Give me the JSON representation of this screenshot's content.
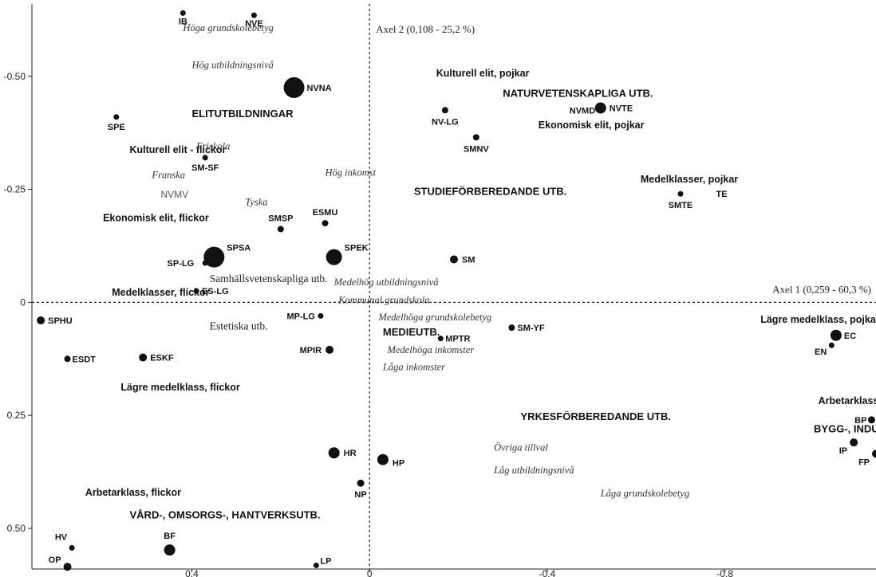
{
  "chart_data": {
    "type": "scatter",
    "title": "",
    "xlabel": "Axel 1 (0,259 - 60,3 %)",
    "ylabel": "Axel 2 (0,108 - 25,2 %)",
    "xlim": [
      0.76,
      -1.14
    ],
    "ylim": [
      -0.66,
      0.59
    ],
    "x_ticks": [
      {
        "v": 0.4,
        "label": "0.4"
      },
      {
        "v": 0,
        "label": "0"
      },
      {
        "v": -0.4,
        "label": "-0.4"
      },
      {
        "v": -0.8,
        "label": "-0.8"
      }
    ],
    "y_ticks": [
      {
        "v": -0.5,
        "label": "-0.50"
      },
      {
        "v": -0.25,
        "label": "-0.25"
      },
      {
        "v": 0,
        "label": "0"
      },
      {
        "v": 0.25,
        "label": "0.25"
      },
      {
        "v": 0.5,
        "label": "0.50"
      }
    ],
    "grid": false,
    "points": [
      {
        "label": "IB",
        "x": 0.42,
        "y": -0.64,
        "size": 3.5
      },
      {
        "label": "NVE",
        "x": 0.26,
        "y": -0.635,
        "size": 3.5
      },
      {
        "label": "NVNA",
        "x": 0.17,
        "y": -0.475,
        "size": 13
      },
      {
        "label": "SPE",
        "x": 0.57,
        "y": -0.41,
        "size": 3.5
      },
      {
        "label": "NV-LG",
        "x": -0.17,
        "y": -0.425,
        "size": 4
      },
      {
        "label": "NVTE",
        "x": -0.52,
        "y": -0.43,
        "size": 7
      },
      {
        "label": "SMNV",
        "x": -0.24,
        "y": -0.365,
        "size": 4
      },
      {
        "label": "SM-SF",
        "x": 0.37,
        "y": -0.32,
        "size": 3.5
      },
      {
        "label": "SMTE",
        "x": -0.7,
        "y": -0.24,
        "size": 3.5
      },
      {
        "label": "SMSP",
        "x": 0.2,
        "y": -0.162,
        "size": 4
      },
      {
        "label": "ESMU",
        "x": 0.1,
        "y": -0.175,
        "size": 4
      },
      {
        "label": "SPSA",
        "x": 0.35,
        "y": -0.1,
        "size": 13
      },
      {
        "label": "SP-LG",
        "x": 0.37,
        "y": -0.087,
        "size": 3.5
      },
      {
        "label": "SPEK",
        "x": 0.08,
        "y": -0.1,
        "size": 10
      },
      {
        "label": "SM",
        "x": -0.19,
        "y": -0.095,
        "size": 5
      },
      {
        "label": "ES-LG",
        "x": 0.39,
        "y": -0.025,
        "size": 3.5
      },
      {
        "label": "SPHU",
        "x": 0.74,
        "y": 0.04,
        "size": 5
      },
      {
        "label": "MP-LG",
        "x": 0.11,
        "y": 0.03,
        "size": 3.5
      },
      {
        "label": "SM-YF",
        "x": -0.32,
        "y": 0.056,
        "size": 4
      },
      {
        "label": "MPTR",
        "x": -0.16,
        "y": 0.08,
        "size": 3.5
      },
      {
        "label": "EC",
        "x": -1.05,
        "y": 0.073,
        "size": 7
      },
      {
        "label": "EN",
        "x": -1.04,
        "y": 0.095,
        "size": 3.5
      },
      {
        "label": "MPIR",
        "x": 0.09,
        "y": 0.105,
        "size": 5
      },
      {
        "label": "ESDT",
        "x": 0.68,
        "y": 0.125,
        "size": 4
      },
      {
        "label": "ESKF",
        "x": 0.51,
        "y": 0.122,
        "size": 5
      },
      {
        "label": "BP",
        "x": -1.13,
        "y": 0.26,
        "size": 4.5
      },
      {
        "label": "IP",
        "x": -1.09,
        "y": 0.31,
        "size": 5
      },
      {
        "label": "FP",
        "x": -1.14,
        "y": 0.335,
        "size": 5
      },
      {
        "label": "HR",
        "x": 0.08,
        "y": 0.333,
        "size": 7
      },
      {
        "label": "HP",
        "x": -0.03,
        "y": 0.348,
        "size": 7
      },
      {
        "label": "NP",
        "x": 0.02,
        "y": 0.4,
        "size": 4.5
      },
      {
        "label": "HV",
        "x": 0.67,
        "y": 0.543,
        "size": 3.5
      },
      {
        "label": "BF",
        "x": 0.45,
        "y": 0.548,
        "size": 7
      },
      {
        "label": "OP",
        "x": 0.68,
        "y": 0.585,
        "size": 5
      },
      {
        "label": "LP",
        "x": 0.12,
        "y": 0.582,
        "size": 3.5
      }
    ],
    "annotations": [
      {
        "text": "Höga grundskolebetyg",
        "x": 0.42,
        "y": -0.6,
        "style": "italic"
      },
      {
        "text": "Hög utbildningsnivå",
        "x": 0.4,
        "y": -0.518,
        "style": "italic"
      },
      {
        "text": "Kulturell elit, pojkar",
        "x": -0.15,
        "y": -0.5,
        "style": "group"
      },
      {
        "text": "NATURVETENSKAPLIGA UTB.",
        "x": -0.3,
        "y": -0.455,
        "style": "upper"
      },
      {
        "text": "NVMD",
        "x": -0.45,
        "y": -0.418,
        "style": "point"
      },
      {
        "text": "Ekonomisk elit, pojkar",
        "x": -0.38,
        "y": -0.385,
        "style": "group"
      },
      {
        "text": "ELITUTBILDNINGAR",
        "x": 0.4,
        "y": -0.41,
        "style": "upper"
      },
      {
        "text": "Kulturell elit - flickor",
        "x": 0.54,
        "y": -0.33,
        "style": "group"
      },
      {
        "text": "Friskola",
        "x": 0.39,
        "y": -0.338,
        "style": "italic"
      },
      {
        "text": "Franska",
        "x": 0.49,
        "y": -0.275,
        "style": "italic"
      },
      {
        "text": "Hög inkomst",
        "x": 0.1,
        "y": -0.28,
        "style": "italic"
      },
      {
        "text": "Medelklasser, pojkar",
        "x": -0.61,
        "y": -0.265,
        "style": "group"
      },
      {
        "text": "STUDIEFÖRBEREDANDE UTB.",
        "x": -0.1,
        "y": -0.238,
        "style": "upper"
      },
      {
        "text": "TE",
        "x": -0.78,
        "y": -0.233,
        "style": "point"
      },
      {
        "text": "NVMV",
        "x": 0.47,
        "y": -0.232,
        "style": "gray"
      },
      {
        "text": "Tyska",
        "x": 0.28,
        "y": -0.215,
        "style": "italic"
      },
      {
        "text": "Ekonomisk elit, flickor",
        "x": 0.6,
        "y": -0.18,
        "style": "group"
      },
      {
        "text": "Samhällsvetenskapliga utb.",
        "x": 0.36,
        "y": -0.045,
        "style": "serif"
      },
      {
        "text": "Medelhög utbildningsnivå",
        "x": 0.08,
        "y": -0.038,
        "style": "italic"
      },
      {
        "text": "Medelklasser, flickor",
        "x": 0.58,
        "y": -0.015,
        "style": "group"
      },
      {
        "text": "Kommunal grundskola",
        "x": 0.07,
        "y": 0.002,
        "style": "italic"
      },
      {
        "text": "Lägre medelklass, pojkar",
        "x": -0.88,
        "y": 0.045,
        "style": "group"
      },
      {
        "text": "Estetiska utb.",
        "x": 0.36,
        "y": 0.06,
        "style": "serif"
      },
      {
        "text": "Medelhöga grundskolebetyg",
        "x": -0.02,
        "y": 0.04,
        "style": "italic"
      },
      {
        "text": "MEDIEUTB.",
        "x": -0.03,
        "y": 0.073,
        "style": "upper"
      },
      {
        "text": "Medelhöga inkomster",
        "x": -0.04,
        "y": 0.112,
        "style": "italic"
      },
      {
        "text": "Låga inkomster",
        "x": -0.03,
        "y": 0.15,
        "style": "italic"
      },
      {
        "text": "Lägre medelklass, flickor",
        "x": 0.56,
        "y": 0.195,
        "style": "group"
      },
      {
        "text": "Arbetarklass, pojkar",
        "x": -1.01,
        "y": 0.225,
        "style": "group"
      },
      {
        "text": "YRKESFÖRBEREDANDE UTB.",
        "x": -0.34,
        "y": 0.26,
        "style": "upper"
      },
      {
        "text": "BYGG-, INDUSTRI-, FORDONSUTB.",
        "x": -1.0,
        "y": 0.288,
        "style": "upper"
      },
      {
        "text": "Övriga tillval",
        "x": -0.28,
        "y": 0.328,
        "style": "italic"
      },
      {
        "text": "Låg utbildningsnivå",
        "x": -0.28,
        "y": 0.378,
        "style": "italic"
      },
      {
        "text": "Arbetarklass, flickor",
        "x": 0.64,
        "y": 0.428,
        "style": "group"
      },
      {
        "text": "Låga grundskolebetyg",
        "x": -0.52,
        "y": 0.43,
        "style": "italic"
      },
      {
        "text": "VÅRD-, OMSORGS-, HANTVERKSUTB.",
        "x": 0.54,
        "y": 0.478,
        "style": "upper"
      }
    ]
  }
}
